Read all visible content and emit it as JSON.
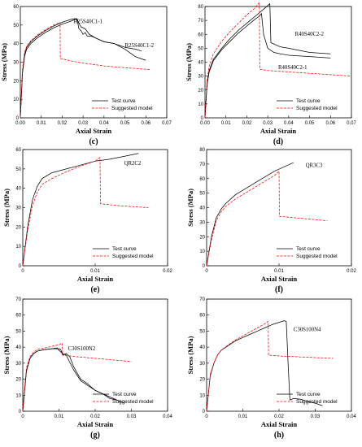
{
  "chart_data": [
    {
      "panel": "(c)",
      "type": "line",
      "xlabel": "Axial Strain",
      "ylabel": "Stress (MPa)",
      "xlim": [
        0,
        0.07
      ],
      "ylim": [
        0,
        60
      ],
      "xticks": [
        "0.00",
        "0.01",
        "0.02",
        "0.03",
        "0.04",
        "0.05",
        "0.06",
        "0.07"
      ],
      "yticks": [
        "0",
        "10",
        "20",
        "30",
        "40",
        "50",
        "60"
      ],
      "legend": "bottom-right",
      "series": [
        {
          "name": "Test curve",
          "color": "#000000",
          "dash": "solid",
          "x": [
            0,
            0.001,
            0.002,
            0.003,
            0.005,
            0.008,
            0.012,
            0.016,
            0.02,
            0.024,
            0.026,
            0.027,
            0.0275,
            0.028,
            0.029,
            0.03,
            0.031,
            0.032,
            0.034,
            0.036,
            0.04,
            0.045,
            0.05,
            0.055,
            0.058
          ],
          "y": [
            0,
            24,
            34,
            38,
            41,
            44,
            47,
            49.5,
            51.5,
            53,
            53.5,
            53,
            51,
            48,
            47,
            45,
            46,
            44,
            44,
            43,
            41,
            40,
            38,
            37,
            36
          ]
        },
        {
          "name": "Test curve",
          "color": "#000000",
          "dash": "solid",
          "x": [
            0,
            0.001,
            0.002,
            0.003,
            0.005,
            0.008,
            0.012,
            0.016,
            0.02,
            0.024,
            0.026,
            0.027,
            0.028,
            0.029,
            0.031,
            0.033,
            0.036,
            0.04,
            0.045,
            0.05,
            0.055,
            0.06
          ],
          "y": [
            0,
            24,
            33,
            37,
            40,
            43,
            46,
            48.5,
            50.5,
            52,
            53,
            53.5,
            51,
            49,
            48,
            45,
            43,
            41,
            40,
            37,
            33,
            31
          ]
        },
        {
          "name": "Suggested model",
          "color": "#ff0000",
          "dash": "dash",
          "x": [
            0,
            0.001,
            0.002,
            0.003,
            0.005,
            0.008,
            0.012,
            0.016,
            0.019,
            0.0191,
            0.025,
            0.03,
            0.04,
            0.05,
            0.062
          ],
          "y": [
            0,
            26,
            35,
            38.5,
            41.5,
            44.5,
            47.5,
            50,
            51.5,
            32,
            30.5,
            29.5,
            28,
            27,
            26
          ]
        }
      ],
      "annotations": [
        {
          "text": "R25S40C1-1",
          "x": 0.0255,
          "y": 51
        },
        {
          "text": "R25S40C1-2",
          "x": 0.05,
          "y": 38
        }
      ]
    },
    {
      "panel": "(d)",
      "type": "line",
      "xlabel": "Axial Strain",
      "ylabel": "Stress (MPa)",
      "xlim": [
        0,
        0.07
      ],
      "ylim": [
        0,
        80
      ],
      "xticks": [
        "0.00",
        "0.01",
        "0.02",
        "0.03",
        "0.04",
        "0.05",
        "0.06",
        "0.07"
      ],
      "yticks": [
        "0",
        "10",
        "20",
        "30",
        "40",
        "50",
        "60",
        "70",
        "80"
      ],
      "legend": "bottom-right",
      "series": [
        {
          "name": "Test curve",
          "color": "#000000",
          "dash": "solid",
          "x": [
            0,
            0.001,
            0.002,
            0.004,
            0.008,
            0.012,
            0.016,
            0.02,
            0.024,
            0.028,
            0.031,
            0.0315,
            0.033,
            0.036,
            0.04,
            0.05,
            0.06
          ],
          "y": [
            0,
            25,
            34,
            42,
            50,
            57,
            63,
            68,
            73,
            78,
            82,
            54,
            53,
            51,
            50,
            47,
            46
          ]
        },
        {
          "name": "Test curve",
          "color": "#000000",
          "dash": "solid",
          "x": [
            0,
            0.001,
            0.002,
            0.004,
            0.008,
            0.012,
            0.016,
            0.02,
            0.024,
            0.026,
            0.027,
            0.028,
            0.03,
            0.033,
            0.036,
            0.04,
            0.05,
            0.06
          ],
          "y": [
            0,
            24,
            33,
            41,
            49,
            55,
            61,
            66,
            71,
            73,
            75,
            60,
            50,
            47,
            46,
            45,
            44,
            43
          ]
        },
        {
          "name": "Suggested model",
          "color": "#ff0000",
          "dash": "dash",
          "x": [
            0,
            0.001,
            0.002,
            0.004,
            0.008,
            0.012,
            0.016,
            0.02,
            0.024,
            0.026,
            0.0262,
            0.03,
            0.04,
            0.05,
            0.06,
            0.07
          ],
          "y": [
            0,
            27,
            37,
            46,
            55,
            62,
            68,
            74,
            79,
            83,
            35,
            34,
            33,
            32,
            31,
            30
          ]
        }
      ],
      "annotations": [
        {
          "text": "R40S40C2-2",
          "x": 0.043,
          "y": 59
        },
        {
          "text": "R40S40C2-1",
          "x": 0.035,
          "y": 35
        }
      ]
    },
    {
      "panel": "(e)",
      "type": "line",
      "xlabel": "Axial Strain",
      "ylabel": "Stress (MPa)",
      "xlim": [
        0,
        0.03
      ],
      "ylim": [
        0,
        60
      ],
      "xticks": [
        "0",
        "0.01",
        "0.02"
      ],
      "yticks": [
        "0",
        "10",
        "20",
        "30",
        "40",
        "50",
        "60"
      ],
      "legend": "bottom-right",
      "series": [
        {
          "name": "Test curve",
          "color": "#000000",
          "dash": "solid",
          "x": [
            0,
            0.001,
            0.002,
            0.003,
            0.004,
            0.006,
            0.009,
            0.012,
            0.015,
            0.018,
            0.021,
            0.024
          ],
          "y": [
            0,
            20,
            34,
            41,
            45,
            48,
            50,
            52,
            54,
            55,
            56.5,
            58
          ]
        },
        {
          "name": "Suggested model",
          "color": "#ff0000",
          "dash": "dash",
          "x": [
            0,
            0.001,
            0.002,
            0.003,
            0.004,
            0.006,
            0.009,
            0.012,
            0.015,
            0.016,
            0.0161,
            0.02,
            0.026
          ],
          "y": [
            0,
            18,
            31,
            38,
            42,
            45,
            48.5,
            51.5,
            54,
            56,
            32,
            31,
            30
          ]
        }
      ],
      "annotations": [
        {
          "text": "QR2C2",
          "x": 0.021,
          "y": 52
        }
      ]
    },
    {
      "panel": "(f)",
      "type": "line",
      "xlabel": "Axial Strain",
      "ylabel": "Stress (MPa)",
      "xlim": [
        0,
        0.03
      ],
      "ylim": [
        0,
        80
      ],
      "xticks": [
        "0",
        "0.01",
        "0.02"
      ],
      "yticks": [
        "0",
        "10",
        "20",
        "30",
        "40",
        "50",
        "60",
        "70",
        "80"
      ],
      "legend": "bottom-right",
      "series": [
        {
          "name": "Test curve",
          "color": "#000000",
          "dash": "solid",
          "x": [
            0,
            0.001,
            0.002,
            0.003,
            0.004,
            0.006,
            0.008,
            0.01,
            0.012,
            0.014,
            0.016,
            0.018
          ],
          "y": [
            0,
            20,
            33,
            39,
            43,
            49,
            53,
            57,
            61,
            65,
            68,
            71
          ]
        },
        {
          "name": "Suggested model",
          "color": "#ff0000",
          "dash": "dash",
          "x": [
            0,
            0.001,
            0.002,
            0.003,
            0.004,
            0.006,
            0.008,
            0.01,
            0.012,
            0.014,
            0.015,
            0.0151,
            0.02,
            0.025
          ],
          "y": [
            0,
            18,
            31,
            37,
            41,
            46,
            50,
            54,
            58,
            62,
            65,
            34,
            32.5,
            31
          ]
        }
      ],
      "annotations": [
        {
          "text": "QR3C3",
          "x": 0.0205,
          "y": 68
        }
      ]
    },
    {
      "panel": "(g)",
      "type": "line",
      "xlabel": "Axial Strain",
      "ylabel": "Stress (MPa)",
      "xlim": [
        0,
        0.04
      ],
      "ylim": [
        0,
        70
      ],
      "xticks": [
        "0",
        "0.01",
        "0.02",
        "0.03",
        "0.04"
      ],
      "yticks": [
        "0",
        "10",
        "20",
        "30",
        "40",
        "50",
        "60",
        "70"
      ],
      "legend": "bottom-right",
      "series": [
        {
          "name": "Test curve",
          "color": "#000000",
          "dash": "solid",
          "x": [
            0,
            0.001,
            0.002,
            0.003,
            0.004,
            0.006,
            0.008,
            0.01,
            0.0105,
            0.011,
            0.012,
            0.013,
            0.014,
            0.016,
            0.018,
            0.02,
            0.022,
            0.024,
            0.026,
            0.027
          ],
          "y": [
            0,
            25,
            33,
            36,
            37.5,
            38.5,
            39,
            39,
            38.5,
            35,
            36,
            34,
            28,
            20,
            17,
            13,
            11,
            8,
            7,
            6
          ]
        },
        {
          "name": "Test curve",
          "color": "#000000",
          "dash": "solid",
          "x": [
            0,
            0.001,
            0.002,
            0.003,
            0.004,
            0.006,
            0.008,
            0.0095,
            0.01,
            0.011,
            0.012,
            0.014,
            0.016,
            0.018,
            0.02,
            0.022,
            0.024,
            0.026,
            0.028
          ],
          "y": [
            0,
            25,
            33,
            36,
            37.5,
            38.5,
            39,
            39.5,
            38,
            36,
            35,
            26,
            19,
            16,
            13,
            11,
            9,
            7,
            5
          ]
        },
        {
          "name": "Suggested model",
          "color": "#ff0000",
          "dash": "dash",
          "x": [
            0,
            0.001,
            0.002,
            0.003,
            0.004,
            0.006,
            0.008,
            0.01,
            0.0109,
            0.011,
            0.015,
            0.02,
            0.025,
            0.03
          ],
          "y": [
            0,
            27,
            34,
            37,
            38.5,
            39.5,
            40.5,
            41.5,
            42.5,
            35,
            34,
            33,
            32,
            31
          ]
        }
      ],
      "annotations": [
        {
          "text": "C30S100N2",
          "x": 0.0125,
          "y": 38
        }
      ]
    },
    {
      "panel": "(h)",
      "type": "line",
      "xlabel": "Axial Strain",
      "ylabel": "Stress (MPa)",
      "xlim": [
        0,
        0.04
      ],
      "ylim": [
        0,
        70
      ],
      "xticks": [
        "0",
        "0.01",
        "0.02",
        "0.03",
        "0.04"
      ],
      "yticks": [
        "0",
        "10",
        "20",
        "30",
        "40",
        "50",
        "60",
        "70"
      ],
      "legend": "bottom-right",
      "series": [
        {
          "name": "Test curve",
          "color": "#000000",
          "dash": "solid",
          "x": [
            0,
            0.001,
            0.002,
            0.003,
            0.004,
            0.006,
            0.008,
            0.01,
            0.012,
            0.014,
            0.016,
            0.018,
            0.02,
            0.0215,
            0.022,
            0.0225,
            0.023,
            0.024,
            0.026,
            0.028,
            0.03,
            0.032
          ],
          "y": [
            0,
            22,
            30,
            35,
            38,
            41,
            44,
            46,
            48,
            50,
            52,
            54,
            55.5,
            56.5,
            56,
            30,
            7,
            8,
            7.5,
            6,
            5,
            3.5
          ]
        },
        {
          "name": "Suggested model",
          "color": "#ff0000",
          "dash": "dash",
          "x": [
            0,
            0.001,
            0.002,
            0.003,
            0.004,
            0.006,
            0.008,
            0.01,
            0.012,
            0.014,
            0.016,
            0.017,
            0.0171,
            0.02,
            0.025,
            0.03,
            0.035
          ],
          "y": [
            0,
            23,
            30,
            35,
            38,
            41.5,
            44.5,
            47,
            49.5,
            52,
            54.5,
            56,
            35,
            34.5,
            34,
            33.5,
            33
          ]
        }
      ],
      "annotations": [
        {
          "text": "C30S100N4",
          "x": 0.024,
          "y": 50
        }
      ]
    }
  ]
}
